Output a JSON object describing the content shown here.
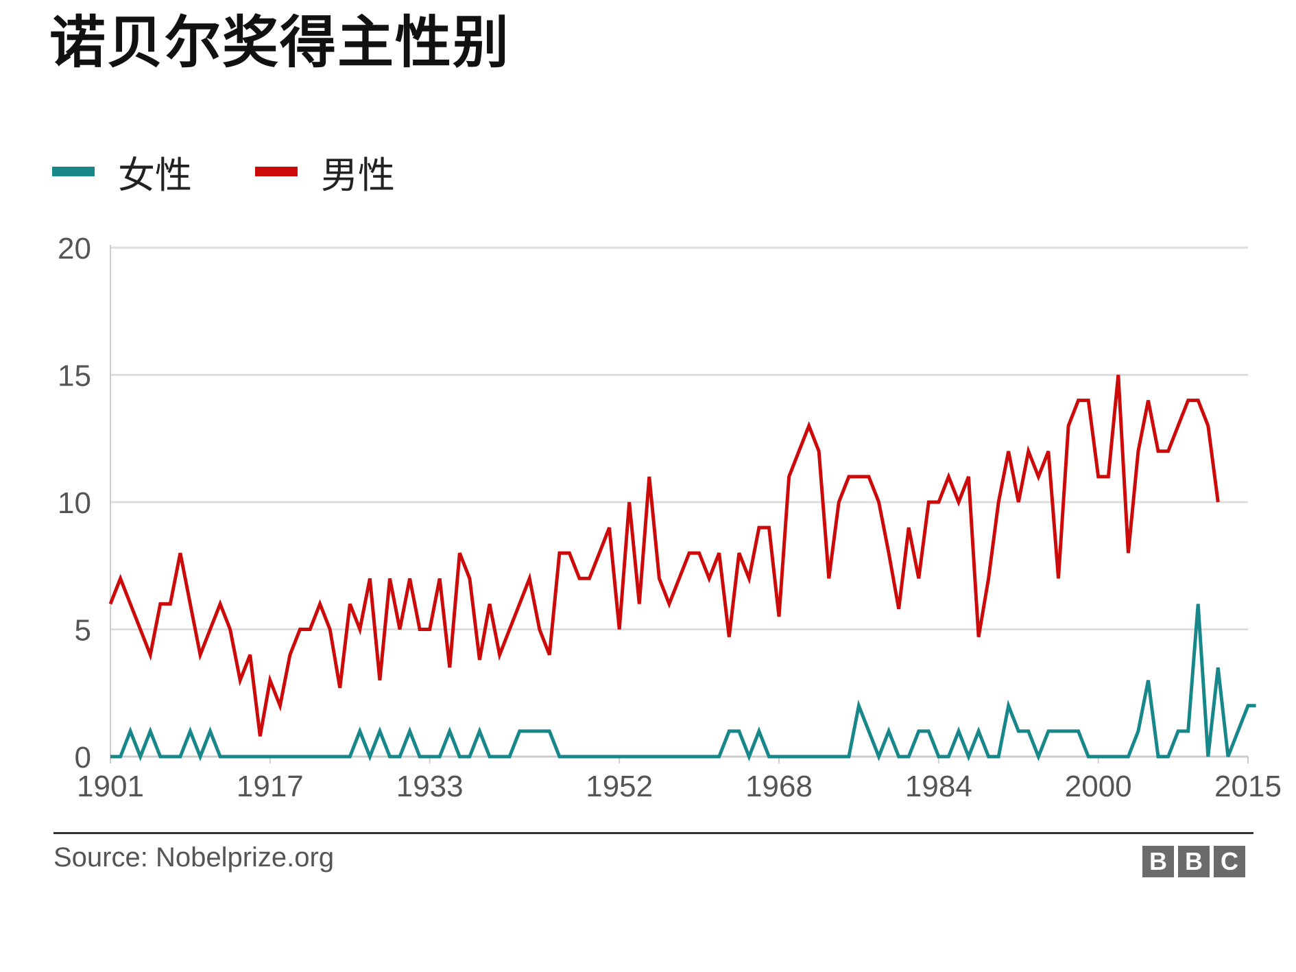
{
  "title": "诺贝尔奖得主性别",
  "source": "Source: Nobelprize.org",
  "logo": [
    "B",
    "B",
    "C"
  ],
  "colors": {
    "female": "#17878a",
    "male": "#cc0a0a",
    "grid": "#dddddd"
  },
  "chart_data": {
    "type": "line",
    "title": "诺贝尔奖得主性别",
    "xlabel": "",
    "ylabel": "",
    "ylim": [
      0,
      20
    ],
    "yticks": [
      0,
      5,
      10,
      15,
      20
    ],
    "xticks": [
      1901,
      1917,
      1933,
      1952,
      1968,
      1984,
      2000,
      2015
    ],
    "xlim": [
      1901,
      2015
    ],
    "grid": true,
    "legend": "top-left",
    "series": [
      {
        "name": "女性",
        "color": "#17878a",
        "points": [
          [
            1901,
            0
          ],
          [
            1902,
            0
          ],
          [
            1903,
            1
          ],
          [
            1904,
            0
          ],
          [
            1905,
            1
          ],
          [
            1906,
            0
          ],
          [
            1907,
            0
          ],
          [
            1908,
            0
          ],
          [
            1909,
            1
          ],
          [
            1910,
            0
          ],
          [
            1911,
            1
          ],
          [
            1912,
            0
          ],
          [
            1913,
            0
          ],
          [
            1914,
            0
          ],
          [
            1915,
            0
          ],
          [
            1916,
            0
          ],
          [
            1917,
            0
          ],
          [
            1918,
            0
          ],
          [
            1919,
            0
          ],
          [
            1920,
            0
          ],
          [
            1921,
            0
          ],
          [
            1922,
            0
          ],
          [
            1923,
            0
          ],
          [
            1924,
            0
          ],
          [
            1925,
            0
          ],
          [
            1926,
            1
          ],
          [
            1927,
            0
          ],
          [
            1928,
            1
          ],
          [
            1929,
            0
          ],
          [
            1930,
            0
          ],
          [
            1931,
            1
          ],
          [
            1932,
            0
          ],
          [
            1933,
            0
          ],
          [
            1934,
            0
          ],
          [
            1935,
            1
          ],
          [
            1936,
            0
          ],
          [
            1937,
            0
          ],
          [
            1938,
            1
          ],
          [
            1939,
            0
          ],
          [
            1940,
            0
          ],
          [
            1941,
            0
          ],
          [
            1942,
            1
          ],
          [
            1943,
            1
          ],
          [
            1944,
            1
          ],
          [
            1945,
            1
          ],
          [
            1946,
            0
          ],
          [
            1947,
            0
          ],
          [
            1948,
            0
          ],
          [
            1949,
            0
          ],
          [
            1950,
            0
          ],
          [
            1951,
            0
          ],
          [
            1952,
            0
          ],
          [
            1953,
            0
          ],
          [
            1954,
            0
          ],
          [
            1955,
            0
          ],
          [
            1956,
            0
          ],
          [
            1957,
            0
          ],
          [
            1958,
            0
          ],
          [
            1959,
            0
          ],
          [
            1960,
            0
          ],
          [
            1961,
            0
          ],
          [
            1962,
            0
          ],
          [
            1963,
            1
          ],
          [
            1964,
            1
          ],
          [
            1965,
            0
          ],
          [
            1966,
            1
          ],
          [
            1967,
            0
          ],
          [
            1968,
            0
          ],
          [
            1969,
            0
          ],
          [
            1970,
            0
          ],
          [
            1971,
            0
          ],
          [
            1972,
            0
          ],
          [
            1973,
            0
          ],
          [
            1974,
            0
          ],
          [
            1975,
            0
          ],
          [
            1976,
            2
          ],
          [
            1977,
            1
          ],
          [
            1978,
            0
          ],
          [
            1979,
            1
          ],
          [
            1980,
            0
          ],
          [
            1981,
            0
          ],
          [
            1982,
            1
          ],
          [
            1983,
            1
          ],
          [
            1984,
            0
          ],
          [
            1985,
            0
          ],
          [
            1986,
            1
          ],
          [
            1987,
            0
          ],
          [
            1988,
            1
          ],
          [
            1989,
            0
          ],
          [
            1990,
            0
          ],
          [
            1991,
            2
          ],
          [
            1992,
            1
          ],
          [
            1993,
            1
          ],
          [
            1994,
            0
          ],
          [
            1995,
            1
          ],
          [
            1996,
            1
          ],
          [
            1997,
            1
          ],
          [
            1998,
            1
          ],
          [
            1999,
            0
          ],
          [
            2000,
            0
          ],
          [
            2001,
            0
          ],
          [
            2002,
            0
          ],
          [
            2003,
            0
          ],
          [
            2004,
            1
          ],
          [
            2005,
            3
          ],
          [
            2006,
            0
          ],
          [
            2007,
            0
          ],
          [
            2008,
            1
          ],
          [
            2009,
            1
          ],
          [
            2010,
            6
          ],
          [
            2011,
            0
          ],
          [
            2012,
            3.5
          ],
          [
            2013,
            0
          ],
          [
            2014,
            1
          ],
          [
            2015,
            2
          ],
          [
            2015.8,
            2
          ]
        ]
      },
      {
        "name": "男性",
        "color": "#cc0a0a",
        "points": [
          [
            1901,
            6
          ],
          [
            1902,
            7
          ],
          [
            1903,
            6
          ],
          [
            1904,
            5
          ],
          [
            1905,
            4
          ],
          [
            1906,
            6
          ],
          [
            1907,
            6
          ],
          [
            1908,
            8
          ],
          [
            1909,
            6
          ],
          [
            1910,
            4
          ],
          [
            1911,
            5
          ],
          [
            1912,
            6
          ],
          [
            1913,
            5
          ],
          [
            1914,
            3
          ],
          [
            1915,
            4
          ],
          [
            1916,
            0.8
          ],
          [
            1917,
            3
          ],
          [
            1918,
            2
          ],
          [
            1919,
            4
          ],
          [
            1920,
            5
          ],
          [
            1921,
            5
          ],
          [
            1922,
            6
          ],
          [
            1923,
            5
          ],
          [
            1924,
            2.7
          ],
          [
            1925,
            6
          ],
          [
            1926,
            5
          ],
          [
            1927,
            7
          ],
          [
            1928,
            3
          ],
          [
            1929,
            7
          ],
          [
            1930,
            5
          ],
          [
            1931,
            7
          ],
          [
            1932,
            5
          ],
          [
            1933,
            5
          ],
          [
            1934,
            7
          ],
          [
            1935,
            3.5
          ],
          [
            1936,
            8
          ],
          [
            1937,
            7
          ],
          [
            1938,
            3.8
          ],
          [
            1939,
            6
          ],
          [
            1940,
            4
          ],
          [
            1941,
            5
          ],
          [
            1942,
            6
          ],
          [
            1943,
            7
          ],
          [
            1944,
            5
          ],
          [
            1945,
            4
          ],
          [
            1946,
            8
          ],
          [
            1947,
            8
          ],
          [
            1948,
            7
          ],
          [
            1949,
            7
          ],
          [
            1950,
            8
          ],
          [
            1951,
            9
          ],
          [
            1952,
            5
          ],
          [
            1953,
            10
          ],
          [
            1954,
            6
          ],
          [
            1955,
            11
          ],
          [
            1956,
            7
          ],
          [
            1957,
            6
          ],
          [
            1958,
            7
          ],
          [
            1959,
            8
          ],
          [
            1960,
            8
          ],
          [
            1961,
            7
          ],
          [
            1962,
            8
          ],
          [
            1963,
            4.7
          ],
          [
            1964,
            8
          ],
          [
            1965,
            7
          ],
          [
            1966,
            9
          ],
          [
            1967,
            9
          ],
          [
            1968,
            5.5
          ],
          [
            1969,
            11
          ],
          [
            1970,
            12
          ],
          [
            1971,
            13
          ],
          [
            1972,
            12
          ],
          [
            1973,
            7
          ],
          [
            1974,
            10
          ],
          [
            1975,
            11
          ],
          [
            1976,
            11
          ],
          [
            1977,
            11
          ],
          [
            1978,
            10
          ],
          [
            1979,
            8
          ],
          [
            1980,
            5.8
          ],
          [
            1981,
            9
          ],
          [
            1982,
            7
          ],
          [
            1983,
            10
          ],
          [
            1984,
            10
          ],
          [
            1985,
            11
          ],
          [
            1986,
            10
          ],
          [
            1987,
            11
          ],
          [
            1988,
            4.7
          ],
          [
            1989,
            7
          ],
          [
            1990,
            10
          ],
          [
            1991,
            12
          ],
          [
            1992,
            10
          ],
          [
            1993,
            12
          ],
          [
            1994,
            11
          ],
          [
            1995,
            12
          ],
          [
            1996,
            7
          ],
          [
            1997,
            13
          ],
          [
            1998,
            14
          ],
          [
            1999,
            14
          ],
          [
            2000,
            11
          ],
          [
            2001,
            11
          ],
          [
            2002,
            15
          ],
          [
            2003,
            8
          ],
          [
            2004,
            12
          ],
          [
            2005,
            14
          ],
          [
            2006,
            12
          ],
          [
            2007,
            12
          ],
          [
            2008,
            13
          ],
          [
            2009,
            14
          ],
          [
            2010,
            14
          ],
          [
            2011,
            13
          ],
          [
            2012,
            10
          ]
        ]
      }
    ]
  }
}
